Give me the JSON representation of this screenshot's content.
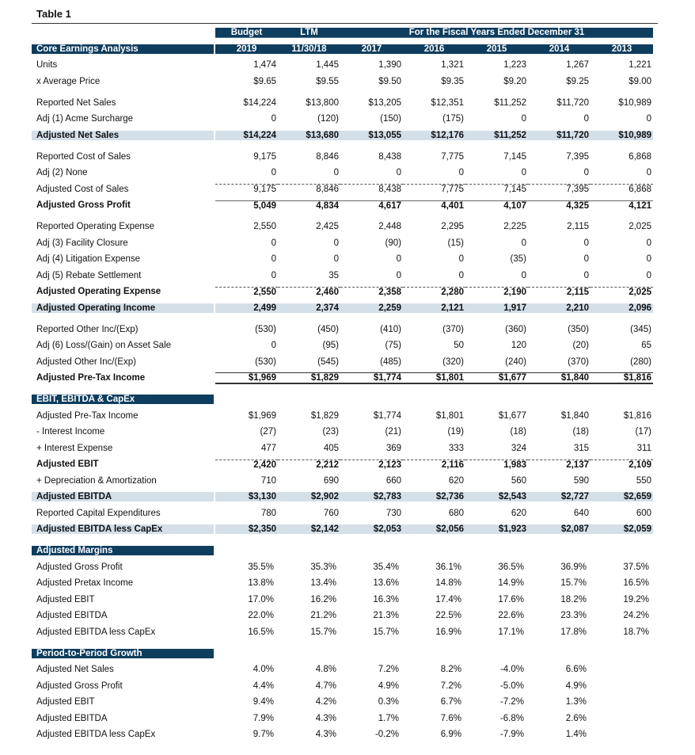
{
  "title": "Table 1",
  "header": {
    "top": [
      "Budget",
      "LTM"
    ],
    "span_label": "For the Fiscal Years Ended December 31",
    "section_label": "Core Earnings Analysis",
    "columns": [
      "2019",
      "11/30/18",
      "2017",
      "2016",
      "2015",
      "2014",
      "2013"
    ]
  },
  "colors": {
    "header": "#0e3d5e",
    "highlight": "#d4dfe8"
  },
  "rows": [
    {
      "label": "Units",
      "values": [
        "1,474",
        "1,445",
        "1,390",
        "1,321",
        "1,223",
        "1,267",
        "1,221"
      ]
    },
    {
      "label": "x Average Price",
      "values": [
        "$9.65",
        "$9.55",
        "$9.50",
        "$9.35",
        "$9.20",
        "$9.25",
        "$9.00"
      ]
    },
    {
      "spacer": true
    },
    {
      "label": "Reported Net Sales",
      "values": [
        "$14,224",
        "$13,800",
        "$13,205",
        "$12,351",
        "$11,252",
        "$11,720",
        "$10,989"
      ]
    },
    {
      "label": "Adj (1) Acme Surcharge",
      "values": [
        "0",
        "(120)",
        "(150)",
        "(175)",
        "0",
        "0",
        "0"
      ]
    },
    {
      "label": "Adjusted Net Sales",
      "values": [
        "$14,224",
        "$13,680",
        "$13,055",
        "$12,176",
        "$11,252",
        "$11,720",
        "$10,989"
      ],
      "bold": true,
      "shaded": true
    },
    {
      "spacer": true
    },
    {
      "label": "Reported Cost of Sales",
      "values": [
        "9,175",
        "8,846",
        "8,438",
        "7,775",
        "7,145",
        "7,395",
        "6,868"
      ]
    },
    {
      "label": "Adj (2) None",
      "values": [
        "0",
        "0",
        "0",
        "0",
        "0",
        "0",
        "0"
      ]
    },
    {
      "label": "Adjusted Cost of Sales",
      "values": [
        "9,175",
        "8,846",
        "8,438",
        "7,775",
        "7,145",
        "7,395",
        "6,868"
      ],
      "rule": "dotted"
    },
    {
      "label": "Adjusted Gross Profit",
      "values": [
        "5,049",
        "4,834",
        "4,617",
        "4,401",
        "4,107",
        "4,325",
        "4,121"
      ],
      "bold": true,
      "rule": "solid"
    },
    {
      "spacer": true
    },
    {
      "label": "Reported Operating Expense",
      "values": [
        "2,550",
        "2,425",
        "2,448",
        "2,295",
        "2,225",
        "2,115",
        "2,025"
      ]
    },
    {
      "label": "Adj (3) Facility Closure",
      "values": [
        "0",
        "0",
        "(90)",
        "(15)",
        "0",
        "0",
        "0"
      ]
    },
    {
      "label": "Adj (4) Litigation Expense",
      "values": [
        "0",
        "0",
        "0",
        "0",
        "(35)",
        "0",
        "0"
      ]
    },
    {
      "label": "Adj (5) Rebate Settlement",
      "values": [
        "0",
        "35",
        "0",
        "0",
        "0",
        "0",
        "0"
      ]
    },
    {
      "label": "Adjusted Operating Expense",
      "values": [
        "2,550",
        "2,460",
        "2,358",
        "2,280",
        "2,190",
        "2,115",
        "2,025"
      ],
      "bold": true,
      "rule": "dotted"
    },
    {
      "label": "Adjusted Operating Income",
      "values": [
        "2,499",
        "2,374",
        "2,259",
        "2,121",
        "1,917",
        "2,210",
        "2,096"
      ],
      "bold": true,
      "shaded": true
    },
    {
      "spacer": true
    },
    {
      "label": "Reported Other Inc/(Exp)",
      "values": [
        "(530)",
        "(450)",
        "(410)",
        "(370)",
        "(360)",
        "(350)",
        "(345)"
      ]
    },
    {
      "label": "Adj (6) Loss/(Gain) on Asset Sale",
      "values": [
        "0",
        "(95)",
        "(75)",
        "50",
        "120",
        "(20)",
        "65"
      ]
    },
    {
      "label": "Adjusted Other Inc/(Exp)",
      "values": [
        "(530)",
        "(545)",
        "(485)",
        "(320)",
        "(240)",
        "(370)",
        "(280)"
      ]
    },
    {
      "label": "Adjusted Pre-Tax Income",
      "values": [
        "$1,969",
        "$1,829",
        "$1,774",
        "$1,801",
        "$1,677",
        "$1,840",
        "$1,816"
      ],
      "bold": true,
      "rule": "double"
    },
    {
      "spacer": true
    },
    {
      "section": "EBIT, EBITDA & CapEx"
    },
    {
      "label": "Adjusted Pre-Tax Income",
      "values": [
        "$1,969",
        "$1,829",
        "$1,774",
        "$1,801",
        "$1,677",
        "$1,840",
        "$1,816"
      ]
    },
    {
      "label": "- Interest Income",
      "values": [
        "(27)",
        "(23)",
        "(21)",
        "(19)",
        "(18)",
        "(18)",
        "(17)"
      ]
    },
    {
      "label": "+ Interest Expense",
      "values": [
        "477",
        "405",
        "369",
        "333",
        "324",
        "315",
        "311"
      ]
    },
    {
      "label": "Adjusted EBIT",
      "values": [
        "2,420",
        "2,212",
        "2,123",
        "2,116",
        "1,983",
        "2,137",
        "2,109"
      ],
      "bold": true,
      "rule": "dotted"
    },
    {
      "label": "+ Depreciation & Amortization",
      "values": [
        "710",
        "690",
        "660",
        "620",
        "560",
        "590",
        "550"
      ]
    },
    {
      "label": "Adjusted EBITDA",
      "values": [
        "$3,130",
        "$2,902",
        "$2,783",
        "$2,736",
        "$2,543",
        "$2,727",
        "$2,659"
      ],
      "bold": true,
      "shaded": true
    },
    {
      "label": "Reported Capital Expenditures",
      "values": [
        "780",
        "760",
        "730",
        "680",
        "620",
        "640",
        "600"
      ]
    },
    {
      "label": "Adjusted EBITDA less CapEx",
      "values": [
        "$2,350",
        "$2,142",
        "$2,053",
        "$2,056",
        "$1,923",
        "$2,087",
        "$2,059"
      ],
      "bold": true,
      "shaded": true
    },
    {
      "spacer": true
    },
    {
      "section": "Adjusted Margins"
    },
    {
      "label": "Adjusted Gross Profit",
      "values": [
        "35.5%",
        "35.3%",
        "35.4%",
        "36.1%",
        "36.5%",
        "36.9%",
        "37.5%"
      ]
    },
    {
      "label": "Adjusted Pretax Income",
      "values": [
        "13.8%",
        "13.4%",
        "13.6%",
        "14.8%",
        "14.9%",
        "15.7%",
        "16.5%"
      ]
    },
    {
      "label": "Adjusted EBIT",
      "values": [
        "17.0%",
        "16.2%",
        "16.3%",
        "17.4%",
        "17.6%",
        "18.2%",
        "19.2%"
      ]
    },
    {
      "label": "Adjusted EBITDA",
      "values": [
        "22.0%",
        "21.2%",
        "21.3%",
        "22.5%",
        "22.6%",
        "23.3%",
        "24.2%"
      ]
    },
    {
      "label": "Adjusted EBITDA less CapEx",
      "values": [
        "16.5%",
        "15.7%",
        "15.7%",
        "16.9%",
        "17.1%",
        "17.8%",
        "18.7%"
      ]
    },
    {
      "spacer": true
    },
    {
      "section": "Period-to-Period Growth"
    },
    {
      "label": "Adjusted Net Sales",
      "values": [
        "4.0%",
        "4.8%",
        "7.2%",
        "8.2%",
        "-4.0%",
        "6.6%",
        ""
      ]
    },
    {
      "label": "Adjusted Gross Profit",
      "values": [
        "4.4%",
        "4.7%",
        "4.9%",
        "7.2%",
        "-5.0%",
        "4.9%",
        ""
      ]
    },
    {
      "label": "Adjusted EBIT",
      "values": [
        "9.4%",
        "4.2%",
        "0.3%",
        "6.7%",
        "-7.2%",
        "1.3%",
        ""
      ]
    },
    {
      "label": "Adjusted EBITDA",
      "values": [
        "7.9%",
        "4.3%",
        "1.7%",
        "7.6%",
        "-6.8%",
        "2.6%",
        ""
      ]
    },
    {
      "label": "Adjusted EBITDA less CapEx",
      "values": [
        "9.7%",
        "4.3%",
        "-0.2%",
        "6.9%",
        "-7.9%",
        "1.4%",
        ""
      ]
    }
  ]
}
